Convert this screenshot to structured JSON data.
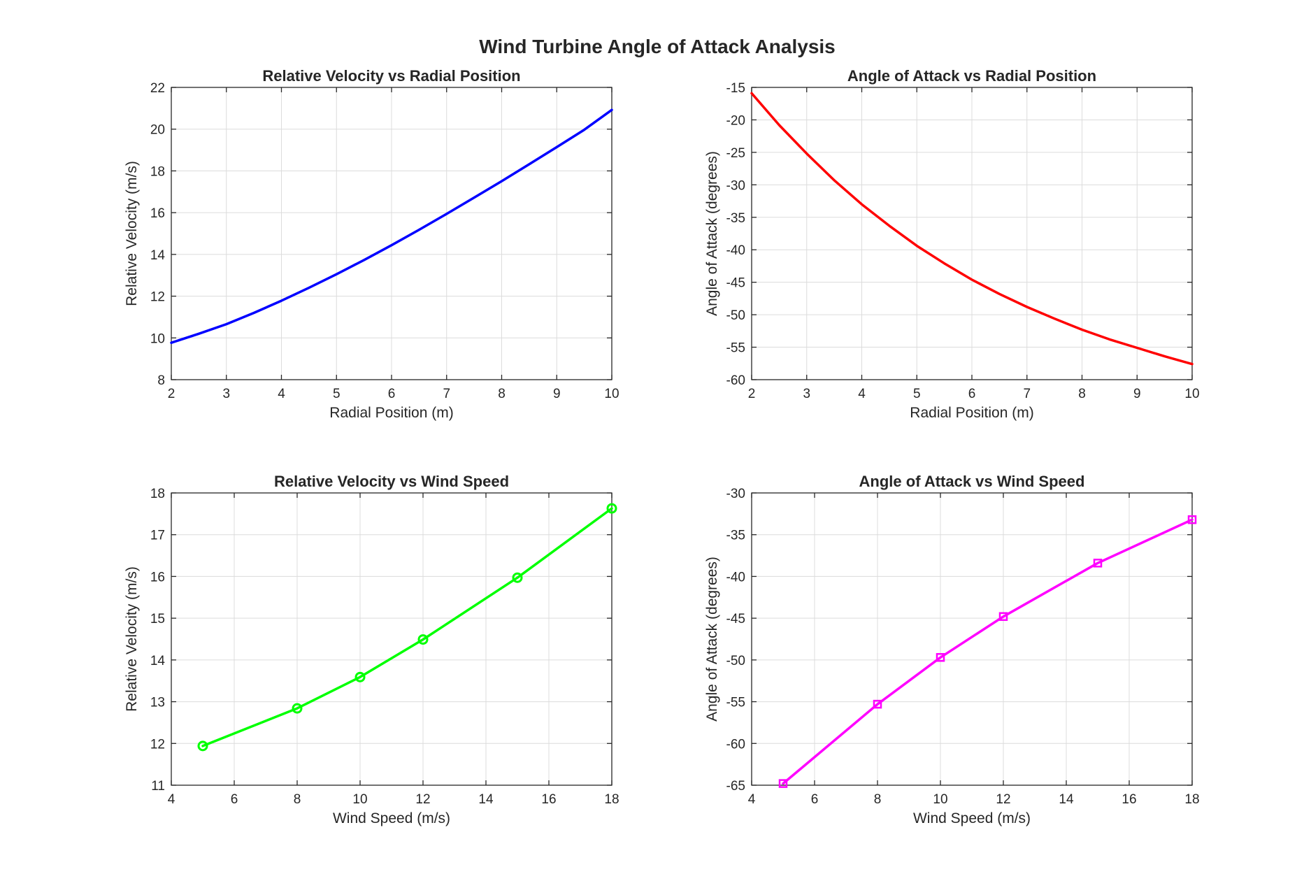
{
  "figure": {
    "title": "Wind Turbine Angle of Attack Analysis"
  },
  "chart_data": [
    {
      "type": "line",
      "title": "Relative Velocity vs Radial Position",
      "xlabel": "Radial Position (m)",
      "ylabel": "Relative Velocity (m/s)",
      "xlim": [
        2,
        10
      ],
      "ylim": [
        8,
        22
      ],
      "xticks": [
        2,
        3,
        4,
        5,
        6,
        7,
        8,
        9,
        10
      ],
      "yticks": [
        8,
        10,
        12,
        14,
        16,
        18,
        20,
        22
      ],
      "grid": true,
      "series": [
        {
          "color": "#0000ff",
          "marker": "none",
          "x": [
            2,
            2.5,
            3,
            3.5,
            4,
            4.5,
            5,
            5.5,
            6,
            6.5,
            7,
            7.5,
            8,
            8.5,
            9,
            9.5,
            10
          ],
          "y": [
            9.77,
            10.2,
            10.66,
            11.2,
            11.78,
            12.4,
            13.05,
            13.73,
            14.44,
            15.18,
            15.94,
            16.72,
            17.51,
            18.32,
            19.14,
            19.97,
            20.92
          ]
        }
      ]
    },
    {
      "type": "line",
      "title": "Angle of Attack vs Radial Position",
      "xlabel": "Radial Position (m)",
      "ylabel": "Angle of Attack (degrees)",
      "xlim": [
        2,
        10
      ],
      "ylim": [
        -60,
        -15
      ],
      "xticks": [
        2,
        3,
        4,
        5,
        6,
        7,
        8,
        9,
        10
      ],
      "yticks": [
        -60,
        -55,
        -50,
        -45,
        -40,
        -35,
        -30,
        -25,
        -20,
        -15
      ],
      "grid": true,
      "series": [
        {
          "color": "#ff0000",
          "marker": "none",
          "x": [
            2,
            2.5,
            3,
            3.5,
            4,
            4.5,
            5,
            5.5,
            6,
            6.5,
            7,
            7.5,
            8,
            8.5,
            9,
            9.5,
            10
          ],
          "y": [
            -15.9,
            -20.8,
            -25.2,
            -29.3,
            -33.0,
            -36.3,
            -39.4,
            -42.1,
            -44.6,
            -46.8,
            -48.8,
            -50.6,
            -52.3,
            -53.8,
            -55.1,
            -56.4,
            -57.6
          ]
        }
      ]
    },
    {
      "type": "line",
      "title": "Relative Velocity vs Wind Speed",
      "xlabel": "Wind Speed (m/s)",
      "ylabel": "Relative Velocity (m/s)",
      "xlim": [
        4,
        18
      ],
      "ylim": [
        11,
        18
      ],
      "xticks": [
        4,
        6,
        8,
        10,
        12,
        14,
        16,
        18
      ],
      "yticks": [
        11,
        12,
        13,
        14,
        15,
        16,
        17,
        18
      ],
      "grid": true,
      "series": [
        {
          "color": "#00ff00",
          "marker": "circle",
          "x": [
            5,
            8,
            10,
            12,
            15,
            18
          ],
          "y": [
            11.94,
            12.84,
            13.59,
            14.49,
            15.97,
            17.63
          ]
        }
      ]
    },
    {
      "type": "line",
      "title": "Angle of Attack vs Wind Speed",
      "xlabel": "Wind Speed (m/s)",
      "ylabel": "Angle of Attack (degrees)",
      "xlim": [
        4,
        18
      ],
      "ylim": [
        -65,
        -30
      ],
      "xticks": [
        4,
        6,
        8,
        10,
        12,
        14,
        16,
        18
      ],
      "yticks": [
        -65,
        -60,
        -55,
        -50,
        -45,
        -40,
        -35,
        -30
      ],
      "grid": true,
      "series": [
        {
          "color": "#ff00ff",
          "marker": "square",
          "x": [
            5,
            8,
            10,
            12,
            15,
            18
          ],
          "y": [
            -64.8,
            -55.3,
            -49.7,
            -44.8,
            -38.4,
            -33.2
          ]
        }
      ]
    }
  ]
}
